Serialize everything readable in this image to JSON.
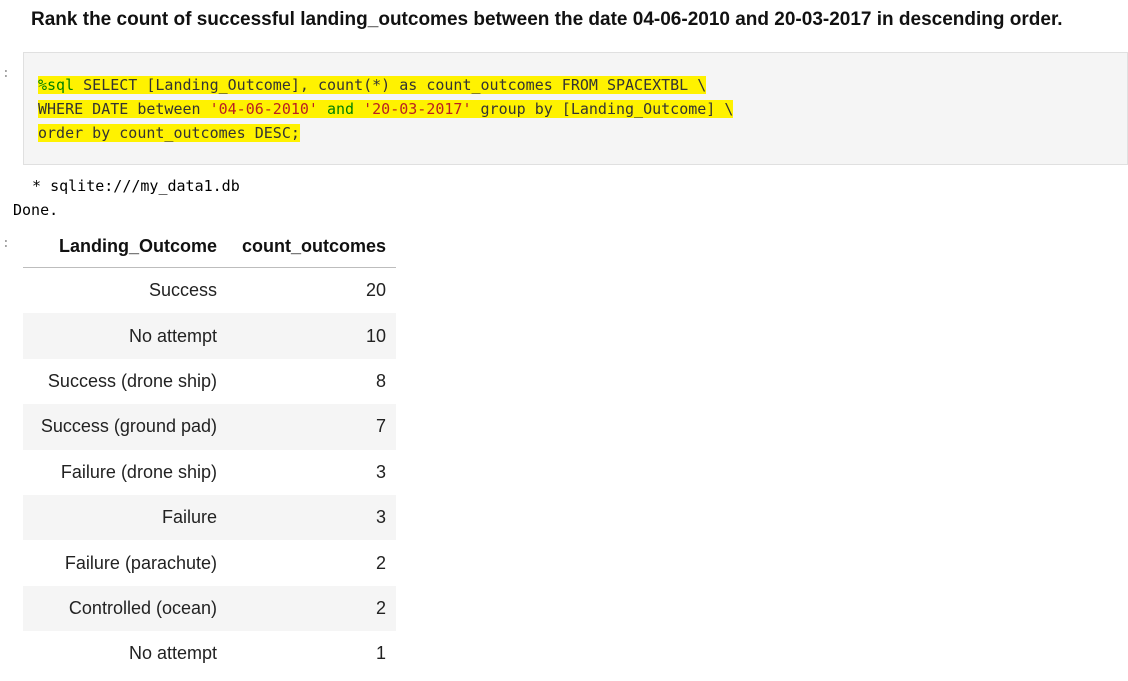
{
  "question": "Rank the count of successful landing_outcomes between the date 04-06-2010 and 20-03-2017 in descending order.",
  "input_prompt": ":",
  "output_prompt": ":",
  "code": {
    "magic": "%sql",
    "line1_rest": " SELECT [Landing_Outcome], count(*) as count_outcomes FROM SPACEXTBL \\",
    "line2_a": "WHERE DATE between ",
    "line2_str1": "'04-06-2010'",
    "line2_and": " and ",
    "line2_str2": "'20-03-2017'",
    "line2_b": " group by [Landing_Outcome] \\",
    "line3": "order by count_outcomes DESC;"
  },
  "output": {
    "connection": " * sqlite:///my_data1.db",
    "status": "Done."
  },
  "table": {
    "headers": [
      "Landing_Outcome",
      "count_outcomes"
    ],
    "rows": [
      [
        "Success",
        "20"
      ],
      [
        "No attempt",
        "10"
      ],
      [
        "Success (drone ship)",
        "8"
      ],
      [
        "Success (ground pad)",
        "7"
      ],
      [
        "Failure (drone ship)",
        "3"
      ],
      [
        "Failure",
        "3"
      ],
      [
        "Failure (parachute)",
        "2"
      ],
      [
        "Controlled (ocean)",
        "2"
      ],
      [
        "No attempt",
        "1"
      ]
    ]
  },
  "colors": {
    "highlight": "#fff200",
    "magic": "#008000",
    "string": "#ba2121",
    "cell_bg": "#f5f5f5"
  }
}
